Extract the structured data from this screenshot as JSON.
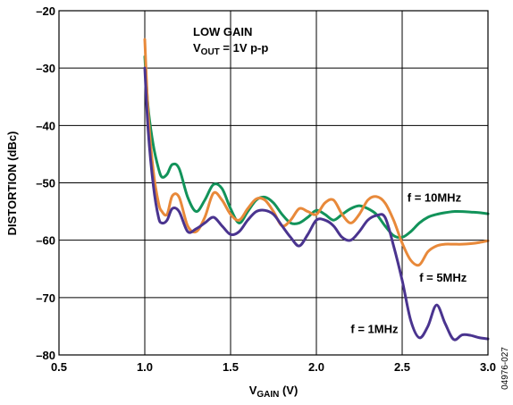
{
  "chart_data": {
    "type": "line",
    "title": "LOW GAIN",
    "subtitle_prefix": "V",
    "subtitle_sub": "OUT",
    "subtitle_suffix": " = 1V p-p",
    "xlabel_main": "V",
    "xlabel_sub": "GAIN",
    "xlabel_suffix": " (V)",
    "ylabel": "DISTORTION (dBc)",
    "xlim": [
      0.5,
      3.0
    ],
    "ylim": [
      -80,
      -20
    ],
    "x_ticks": [
      "0.5",
      "1.0",
      "1.5",
      "2.0",
      "2.5",
      "3.0"
    ],
    "y_ticks": [
      "–20",
      "–30",
      "–40",
      "–50",
      "–60",
      "–70",
      "–80"
    ],
    "grid": true,
    "figure_code": "04976-027",
    "series": [
      {
        "name": "f = 10MHz",
        "color": "#12935a",
        "x": [
          1.0,
          1.02,
          1.05,
          1.08,
          1.1,
          1.13,
          1.16,
          1.2,
          1.25,
          1.3,
          1.35,
          1.4,
          1.45,
          1.5,
          1.55,
          1.6,
          1.65,
          1.7,
          1.75,
          1.8,
          1.85,
          1.9,
          1.95,
          2.0,
          2.05,
          2.1,
          2.15,
          2.2,
          2.25,
          2.3,
          2.35,
          2.4,
          2.45,
          2.5,
          2.55,
          2.6,
          2.65,
          2.7,
          2.75,
          2.8,
          2.85,
          2.9,
          2.95,
          3.0
        ],
        "y": [
          -28,
          -37,
          -43.5,
          -47.5,
          -49,
          -48.5,
          -46.8,
          -47.5,
          -52.5,
          -55,
          -53,
          -50.3,
          -51,
          -54.5,
          -57,
          -55,
          -53,
          -52.5,
          -53.5,
          -55.5,
          -57,
          -57,
          -56,
          -54.8,
          -55.5,
          -56.5,
          -55.5,
          -54.5,
          -54,
          -54.5,
          -55.5,
          -57.5,
          -59.2,
          -59.5,
          -58.5,
          -57,
          -56,
          -55.5,
          -55.2,
          -55,
          -55,
          -55.1,
          -55.2,
          -55.4
        ]
      },
      {
        "name": "f = 5MHz",
        "color": "#e8893a",
        "x": [
          1.0,
          1.02,
          1.05,
          1.08,
          1.1,
          1.13,
          1.16,
          1.2,
          1.25,
          1.3,
          1.35,
          1.4,
          1.45,
          1.5,
          1.55,
          1.6,
          1.65,
          1.7,
          1.75,
          1.8,
          1.85,
          1.9,
          1.95,
          2.0,
          2.05,
          2.1,
          2.15,
          2.2,
          2.25,
          2.3,
          2.35,
          2.4,
          2.45,
          2.5,
          2.55,
          2.6,
          2.65,
          2.7,
          2.75,
          2.8,
          2.85,
          2.9,
          2.95,
          3.0
        ],
        "y": [
          -25,
          -38,
          -48,
          -53.5,
          -55,
          -55.5,
          -52.3,
          -52.5,
          -57.5,
          -58.5,
          -56,
          -51.8,
          -53,
          -55.5,
          -56.5,
          -54.5,
          -52.8,
          -53,
          -55,
          -57.5,
          -56.5,
          -54.5,
          -55,
          -55.5,
          -53.5,
          -53,
          -55.5,
          -57,
          -55.5,
          -53,
          -52.4,
          -53.5,
          -56.5,
          -60.5,
          -63.5,
          -64.3,
          -62,
          -61,
          -60.7,
          -60.7,
          -60.7,
          -60.6,
          -60.4,
          -60.1
        ]
      },
      {
        "name": "f = 1MHz",
        "color": "#4a348f",
        "x": [
          1.0,
          1.02,
          1.05,
          1.08,
          1.1,
          1.13,
          1.16,
          1.2,
          1.25,
          1.3,
          1.35,
          1.4,
          1.45,
          1.5,
          1.55,
          1.6,
          1.65,
          1.7,
          1.75,
          1.8,
          1.85,
          1.9,
          1.95,
          2.0,
          2.05,
          2.1,
          2.15,
          2.2,
          2.25,
          2.3,
          2.35,
          2.4,
          2.45,
          2.5,
          2.55,
          2.6,
          2.65,
          2.7,
          2.75,
          2.8,
          2.85,
          2.9,
          2.95,
          3.0
        ],
        "y": [
          -30,
          -41,
          -50.5,
          -56,
          -57,
          -56.5,
          -54.5,
          -55,
          -58.5,
          -58,
          -57,
          -56,
          -57.5,
          -59,
          -58.5,
          -56.5,
          -55,
          -54.8,
          -55.5,
          -57.5,
          -59.5,
          -61,
          -59,
          -56.5,
          -56.5,
          -57.5,
          -59.5,
          -60,
          -58.5,
          -56.5,
          -55.7,
          -56,
          -61,
          -67,
          -74,
          -77,
          -75,
          -71.3,
          -74.5,
          -77.3,
          -76.5,
          -76.6,
          -77,
          -77.2
        ]
      }
    ],
    "labels": [
      {
        "text": "f = 10MHz",
        "x": 2.53,
        "y": -53.3
      },
      {
        "text": "f = 5MHz",
        "x": 2.6,
        "y": -67.2
      },
      {
        "text": "f = 1MHz",
        "x": 2.2,
        "y": -76.2
      }
    ]
  }
}
